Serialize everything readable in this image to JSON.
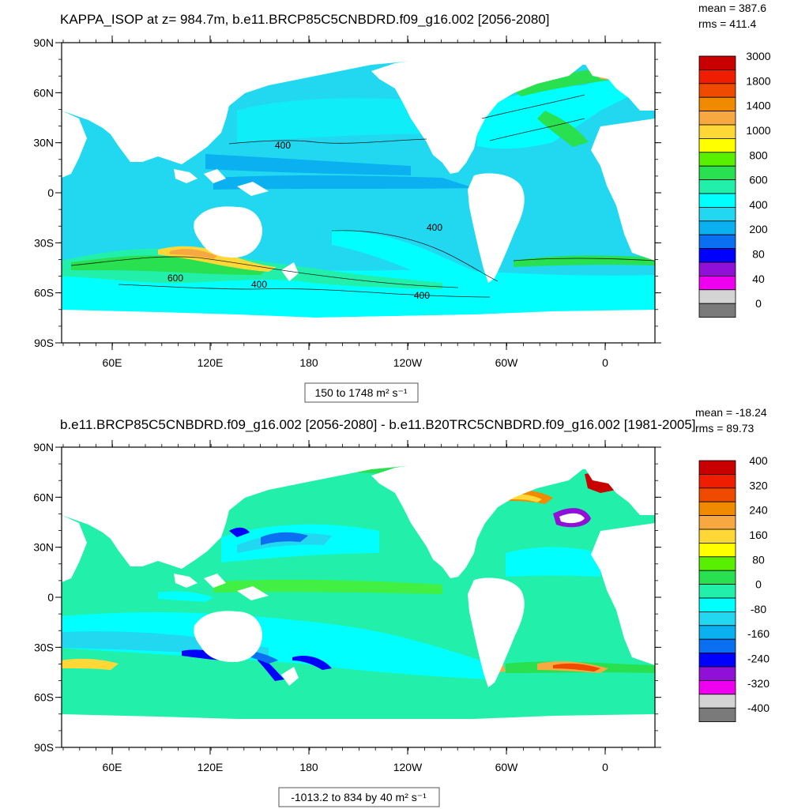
{
  "chart_data": [
    {
      "type": "heatmap",
      "title": "KAPPA_ISOP at z= 984.7m, b.e11.BRCP85C5CNBDRD.f09_g16.002 [2056-2080]",
      "stats": {
        "mean": "mean = 387.6",
        "rms": "rms = 411.4"
      },
      "y_ticks": [
        "90N",
        "60N",
        "30N",
        "0",
        "30S",
        "60S",
        "90S"
      ],
      "x_ticks": [
        "60E",
        "120E",
        "180",
        "120W",
        "60W",
        "0"
      ],
      "contour_labels": [
        "400",
        "400",
        "600",
        "400",
        "400"
      ],
      "colorbar": {
        "labels": [
          "3000",
          "1800",
          "1400",
          "1000",
          "800",
          "600",
          "400",
          "200",
          "80",
          "40",
          "0"
        ],
        "colors": [
          "#c80000",
          "#f01e00",
          "#f04a00",
          "#f08a00",
          "#f8a840",
          "#ffd838",
          "#ffff00",
          "#58f000",
          "#28e050",
          "#22f0aa",
          "#00ffff",
          "#22d8f0",
          "#0ab0f0",
          "#0a6ff0",
          "#0000ff",
          "#9010d8",
          "#f000f0",
          "#d4d4d4",
          "#7a7a7a"
        ]
      },
      "range_label": "150 to 1748 m² s⁻¹"
    },
    {
      "type": "heatmap",
      "title": "b.e11.BRCP85C5CNBDRD.f09_g16.002 [2056-2080] - b.e11.B20TRC5CNBDRD.f09_g16.002 [1981-2005]",
      "stats": {
        "mean": "mean = -18.24",
        "rms": "rms = 89.73"
      },
      "y_ticks": [
        "90N",
        "60N",
        "30N",
        "0",
        "30S",
        "60S",
        "90S"
      ],
      "x_ticks": [
        "60E",
        "120E",
        "180",
        "120W",
        "60W",
        "0"
      ],
      "colorbar": {
        "labels": [
          "400",
          "320",
          "240",
          "160",
          "80",
          "0",
          "-80",
          "-160",
          "-240",
          "-320",
          "-400"
        ],
        "colors": [
          "#c80000",
          "#f01e00",
          "#f04a00",
          "#f08a00",
          "#f8a840",
          "#ffd838",
          "#ffff00",
          "#58f000",
          "#28e050",
          "#22f0aa",
          "#00ffff",
          "#22d8f0",
          "#0ab0f0",
          "#0a6ff0",
          "#0000ff",
          "#9010d8",
          "#f000f0",
          "#d4d4d4",
          "#7a7a7a"
        ]
      },
      "range_label": "-1013.2 to 834 by 40 m² s⁻¹"
    }
  ]
}
